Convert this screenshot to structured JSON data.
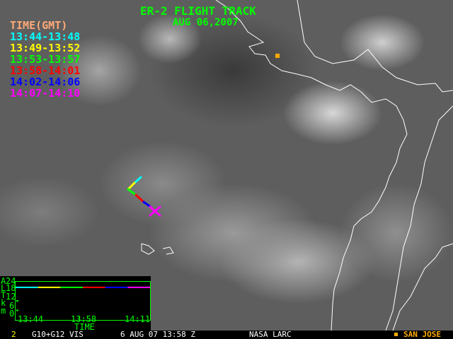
{
  "title": "ER-2 FLIGHT TRACK",
  "date": "AUG 06,2007",
  "legend": {
    "header": "TIME(GMT)",
    "header_color": "#ffaa77",
    "items": [
      {
        "label": "13:44-13:48",
        "color": "#00ffff"
      },
      {
        "label": "13:49-13:52",
        "color": "#ffff00"
      },
      {
        "label": "13:53-13:57",
        "color": "#00ff00"
      },
      {
        "label": "13:58-14:01",
        "color": "#ff0000"
      },
      {
        "label": "14:02-14:06",
        "color": "#0000ff"
      },
      {
        "label": "14:07-14:10",
        "color": "#ff00ff"
      }
    ]
  },
  "altitude_plot": {
    "ylabel": [
      "A",
      "L",
      "T",
      "k",
      "m"
    ],
    "yticks": [
      "24",
      "18",
      "12",
      "6",
      "0"
    ],
    "xticks": [
      "13:44",
      "13:58",
      "14:11"
    ],
    "xlabel": "TIME",
    "altitude_km": 20.5
  },
  "footer": {
    "frame": "2",
    "product": "G10+G12 VIS",
    "timestamp": "6 AUG 07 13:58 Z",
    "source": "NASA LARC",
    "marker_label": "SAN JOSE",
    "marker_color": "#ffaa00"
  }
}
